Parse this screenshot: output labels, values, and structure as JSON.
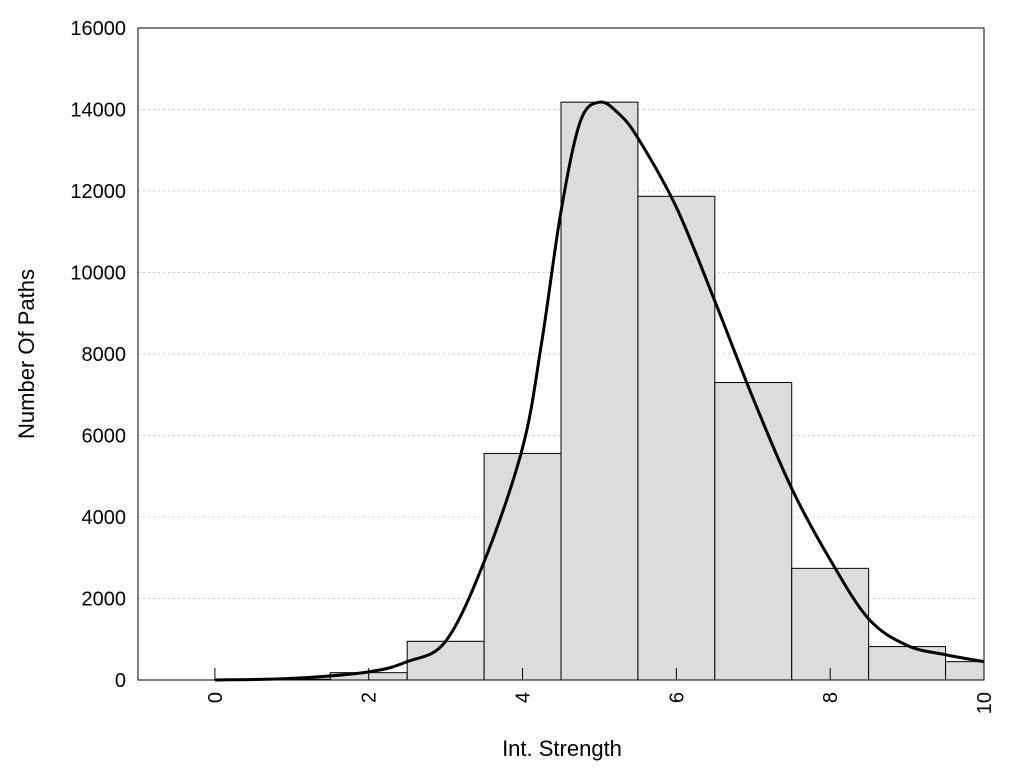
{
  "chart_data": {
    "type": "bar",
    "title": "",
    "xlabel": "Int. Strength",
    "ylabel": "Number Of Paths",
    "xlim": [
      -1,
      10
    ],
    "ylim": [
      0,
      16000
    ],
    "x_ticks": [
      0,
      2,
      4,
      6,
      8,
      10
    ],
    "y_ticks": [
      0,
      2000,
      4000,
      6000,
      8000,
      10000,
      12000,
      14000,
      16000
    ],
    "grid": "horizontal dotted",
    "bar_width": 1,
    "bars": [
      {
        "x": 0,
        "value": 0
      },
      {
        "x": 1,
        "value": 20
      },
      {
        "x": 2,
        "value": 180
      },
      {
        "x": 3,
        "value": 950
      },
      {
        "x": 4,
        "value": 5560
      },
      {
        "x": 5,
        "value": 14180
      },
      {
        "x": 6,
        "value": 11870
      },
      {
        "x": 7,
        "value": 7300
      },
      {
        "x": 8,
        "value": 2740
      },
      {
        "x": 9,
        "value": 820
      },
      {
        "x": 10,
        "value": 450
      }
    ],
    "density_curve": [
      [
        0,
        0
      ],
      [
        1,
        40
      ],
      [
        2,
        200
      ],
      [
        2.5,
        450
      ],
      [
        3,
        950
      ],
      [
        3.5,
        2900
      ],
      [
        4,
        5700
      ],
      [
        4.25,
        8300
      ],
      [
        4.5,
        11500
      ],
      [
        4.75,
        13700
      ],
      [
        5,
        14180
      ],
      [
        5.25,
        13900
      ],
      [
        5.5,
        13300
      ],
      [
        6,
        11600
      ],
      [
        6.5,
        9300
      ],
      [
        7,
        6900
      ],
      [
        7.5,
        4700
      ],
      [
        8,
        2950
      ],
      [
        8.5,
        1500
      ],
      [
        9,
        850
      ],
      [
        9.5,
        620
      ],
      [
        10,
        450
      ]
    ],
    "colors": {
      "bar_fill": "#dcdcdc",
      "bar_stroke": "#000000",
      "curve": "#000000",
      "grid": "#cccccc"
    }
  }
}
